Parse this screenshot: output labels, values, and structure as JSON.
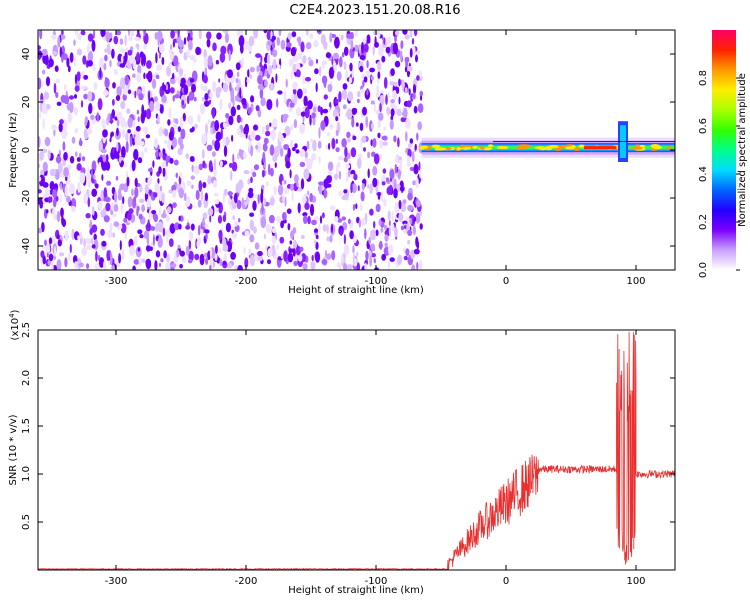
{
  "figure_title": "C2E4.2023.151.20.08.R16",
  "chart_data": [
    {
      "type": "heatmap",
      "xlabel": "Height of straight line (km)",
      "ylabel": "Frequency (Hz)",
      "xlim": [
        -360,
        130
      ],
      "ylim": [
        -50,
        50
      ],
      "x_ticks": [
        "-300",
        "-200",
        "-100",
        "0",
        "100"
      ],
      "y_ticks": [
        "40",
        "20",
        "0",
        "-20",
        "-40"
      ],
      "colorbar": {
        "label": "Normalized spectral amplitude",
        "range": [
          0,
          1
        ],
        "ticks": [
          "0.0",
          "0.2",
          "0.4",
          "0.6",
          "0.8"
        ],
        "colors": [
          "#ffffff",
          "#c9a0ff",
          "#7a00ff",
          "#2200ff",
          "#0066ff",
          "#00ddff",
          "#00ff88",
          "#33ff00",
          "#aaff00",
          "#ffee00",
          "#ff9900",
          "#ff2200",
          "#ff0066"
        ]
      },
      "features": [
        {
          "region": "noise",
          "x_range": [
            -360,
            -65
          ],
          "freq_range": [
            -50,
            50
          ],
          "amplitude_range": [
            0.0,
            0.1
          ]
        },
        {
          "region": "signal_band",
          "x_range": [
            -65,
            130
          ],
          "center_freq": 1,
          "amplitude_peak": 0.9,
          "strong_x": [
            60,
            85
          ]
        },
        {
          "region": "disturbance",
          "x": 90,
          "freq_range": [
            -5,
            12
          ]
        }
      ]
    },
    {
      "type": "line",
      "xlabel": "Height of straight line (km)",
      "ylabel": "SNR (10 * v/v)",
      "multiplier": "(x10",
      "multiplier_exp": "4",
      "multiplier_close": ")",
      "xlim": [
        -360,
        130
      ],
      "ylim": [
        0,
        2.5
      ],
      "x_ticks": [
        "-300",
        "-200",
        "-100",
        "0",
        "100"
      ],
      "y_ticks": [
        "0.5",
        "1.0",
        "1.5",
        "2.0",
        "2.5"
      ],
      "color": "#e83030",
      "segments": [
        {
          "x": [
            -360,
            -45
          ],
          "level": 0.01
        },
        {
          "x": [
            -45,
            -20
          ],
          "level_from": 0.05,
          "level_to": 0.45
        },
        {
          "x": [
            -20,
            25
          ],
          "level_from": 0.45,
          "level_to": 1.0
        },
        {
          "x": [
            25,
            85
          ],
          "level": 1.05
        },
        {
          "x": [
            85,
            100
          ],
          "min": 0.05,
          "max": 2.5
        },
        {
          "x": [
            100,
            130
          ],
          "level": 1.0
        }
      ]
    }
  ]
}
